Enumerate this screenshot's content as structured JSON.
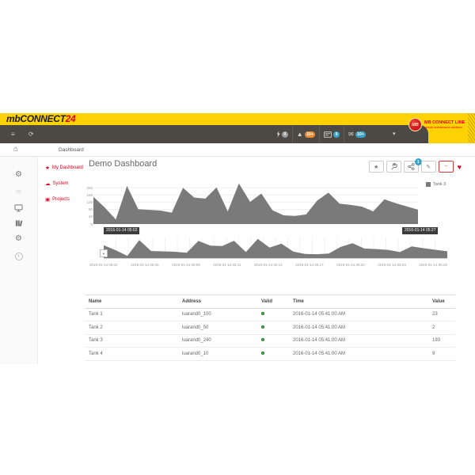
{
  "topbar": {
    "brand": {
      "prefix": "mb",
      "name": "CONNECT",
      "suffix": "24"
    },
    "collapse_icon": "menu-collapse",
    "refresh_icon": "refresh",
    "nav_icons": [
      {
        "name": "bolt",
        "badge": "0",
        "badge_color": "#9b9b9b"
      },
      {
        "name": "warning",
        "badge": "10+",
        "badge_color": "#ef8c2d"
      },
      {
        "name": "card",
        "badge": "0",
        "badge_color": "#36a3c9"
      },
      {
        "name": "envelope",
        "badge": "10+",
        "badge_color": "#36a3c9"
      }
    ],
    "brand_right": {
      "circle": "MB",
      "title": "MB CONNECT LINE",
      "subtitle": "remote maintenance solutions"
    }
  },
  "breadcrumb": {
    "label": "Dashboard"
  },
  "rail_icons": [
    "cogs",
    "envelope",
    "monitor",
    "books",
    "gear",
    "chevron-right"
  ],
  "sidebar": {
    "items": [
      {
        "icon": "star",
        "label": "My Dashboards"
      },
      {
        "icon": "cloud",
        "label": "System"
      },
      {
        "icon": "grid",
        "label": "Projects"
      }
    ]
  },
  "page": {
    "title": "Demo Dashboard"
  },
  "toolbar": {
    "buttons": [
      "star",
      "wrench",
      "share",
      "edit",
      "minimize"
    ],
    "share_badge": "1",
    "favorite_icon": "heart"
  },
  "chart_data": {
    "type": "area",
    "series": [
      {
        "name": "Tank 3",
        "color": "#7a7a7a",
        "values": [
          150,
          92,
          25,
          210,
          82,
          78,
          74,
          63,
          200,
          146,
          140,
          202,
          70,
          224,
          122,
          168,
          76,
          48,
          45,
          53,
          130,
          173,
          112,
          105,
          96,
          70,
          136,
          115,
          97,
          79
        ]
      }
    ],
    "ylim": [
      0,
      240
    ],
    "y_ticks": [
      0,
      40,
      80,
      120,
      160,
      200
    ],
    "x_labels": [
      "2016-01-14 05:02",
      "2016-01-14 05:05",
      "2016-01-14 05:08",
      "2016-01-14 05:11",
      "2016-01-14 05:14",
      "2016-01-14 05:17",
      "2016-01-14 05:20",
      "2016-01-14 05:23",
      "2016-01-14 05:26"
    ],
    "range_selector": {
      "start": "2016-01-14 05:02",
      "end": "2016-01-14 05:27"
    },
    "legend": {
      "position": "top-right",
      "entries": [
        "Tank 3"
      ]
    },
    "grid": "horizontal",
    "navigator": true
  },
  "table": {
    "columns": [
      "Name",
      "Address",
      "Valid",
      "Time",
      "Value"
    ],
    "rows": [
      {
        "name": "Tank 1",
        "address": "luarand0_100",
        "valid": true,
        "time": "2016-01-14 05:41:00 AM",
        "value": "23"
      },
      {
        "name": "Tank 2",
        "address": "luarand0_50",
        "valid": true,
        "time": "2016-01-14 05:41:00 AM",
        "value": "2"
      },
      {
        "name": "Tank 3",
        "address": "luarand0_240",
        "valid": true,
        "time": "2016-01-14 05:41:00 AM",
        "value": "193"
      },
      {
        "name": "Tank 4",
        "address": "luarand0_10",
        "valid": true,
        "time": "2016-01-14 05:41:00 AM",
        "value": "9"
      }
    ]
  }
}
